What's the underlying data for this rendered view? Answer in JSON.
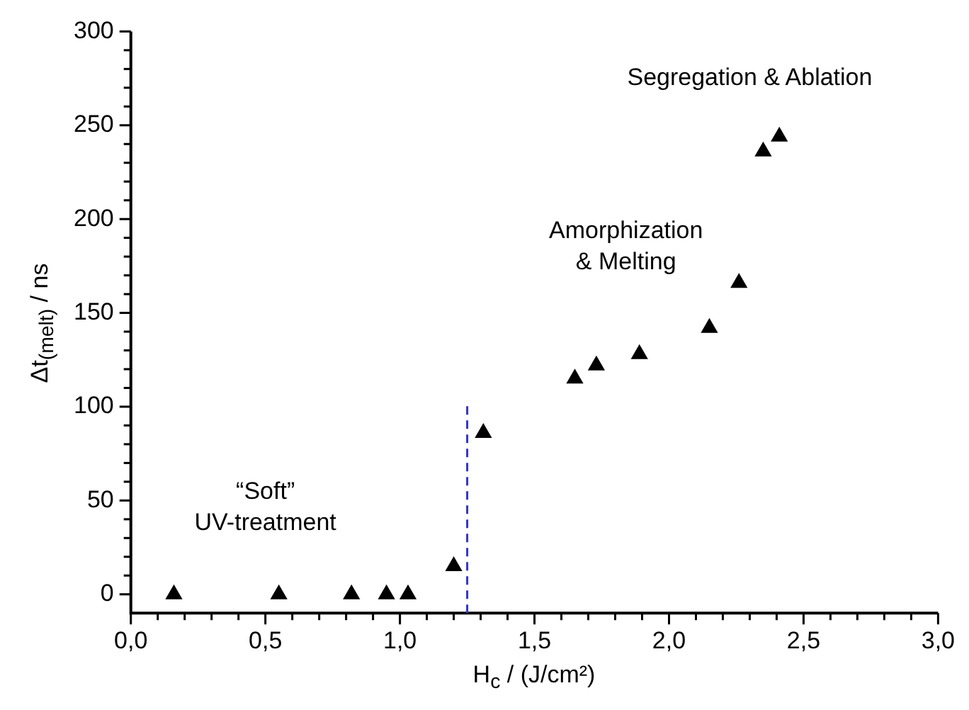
{
  "chart_data": {
    "type": "scatter",
    "xlabel": "H$_{c}$ / (J/cm²)",
    "ylabel": "Δt$_{(melt)}$ / ns",
    "x": [
      0.16,
      0.55,
      0.82,
      0.95,
      1.03,
      1.2,
      1.31,
      1.65,
      1.73,
      1.89,
      2.15,
      2.26,
      2.35,
      2.41
    ],
    "values": [
      0,
      0,
      0,
      0,
      0,
      15,
      86,
      115,
      122,
      128,
      142,
      166,
      236,
      244
    ],
    "color": "#000000",
    "marker": "triangle",
    "xlim": [
      0,
      3
    ],
    "xticks": [
      {
        "value": 0,
        "label": "0,0"
      },
      {
        "value": 0.5,
        "label": "0,5"
      },
      {
        "value": 1,
        "label": "1,0"
      },
      {
        "value": 1.5,
        "label": "1,5"
      },
      {
        "value": 2,
        "label": "2,0"
      },
      {
        "value": 2.5,
        "label": "2,5"
      },
      {
        "value": 3,
        "label": "3,0"
      }
    ],
    "ylim": [
      -10,
      300
    ],
    "yticks": [
      0,
      50,
      100,
      150,
      200,
      250,
      300
    ],
    "ref_lines": [
      {
        "axis": "x",
        "value": 1.25,
        "color": "#3333cc",
        "line_style": "dashed"
      }
    ],
    "annotations": [
      "Segregation & Ablation",
      "Amorphization\n& Melting",
      "“Soft”\nUV-treatment"
    ],
    "grid": false,
    "legend": false
  }
}
